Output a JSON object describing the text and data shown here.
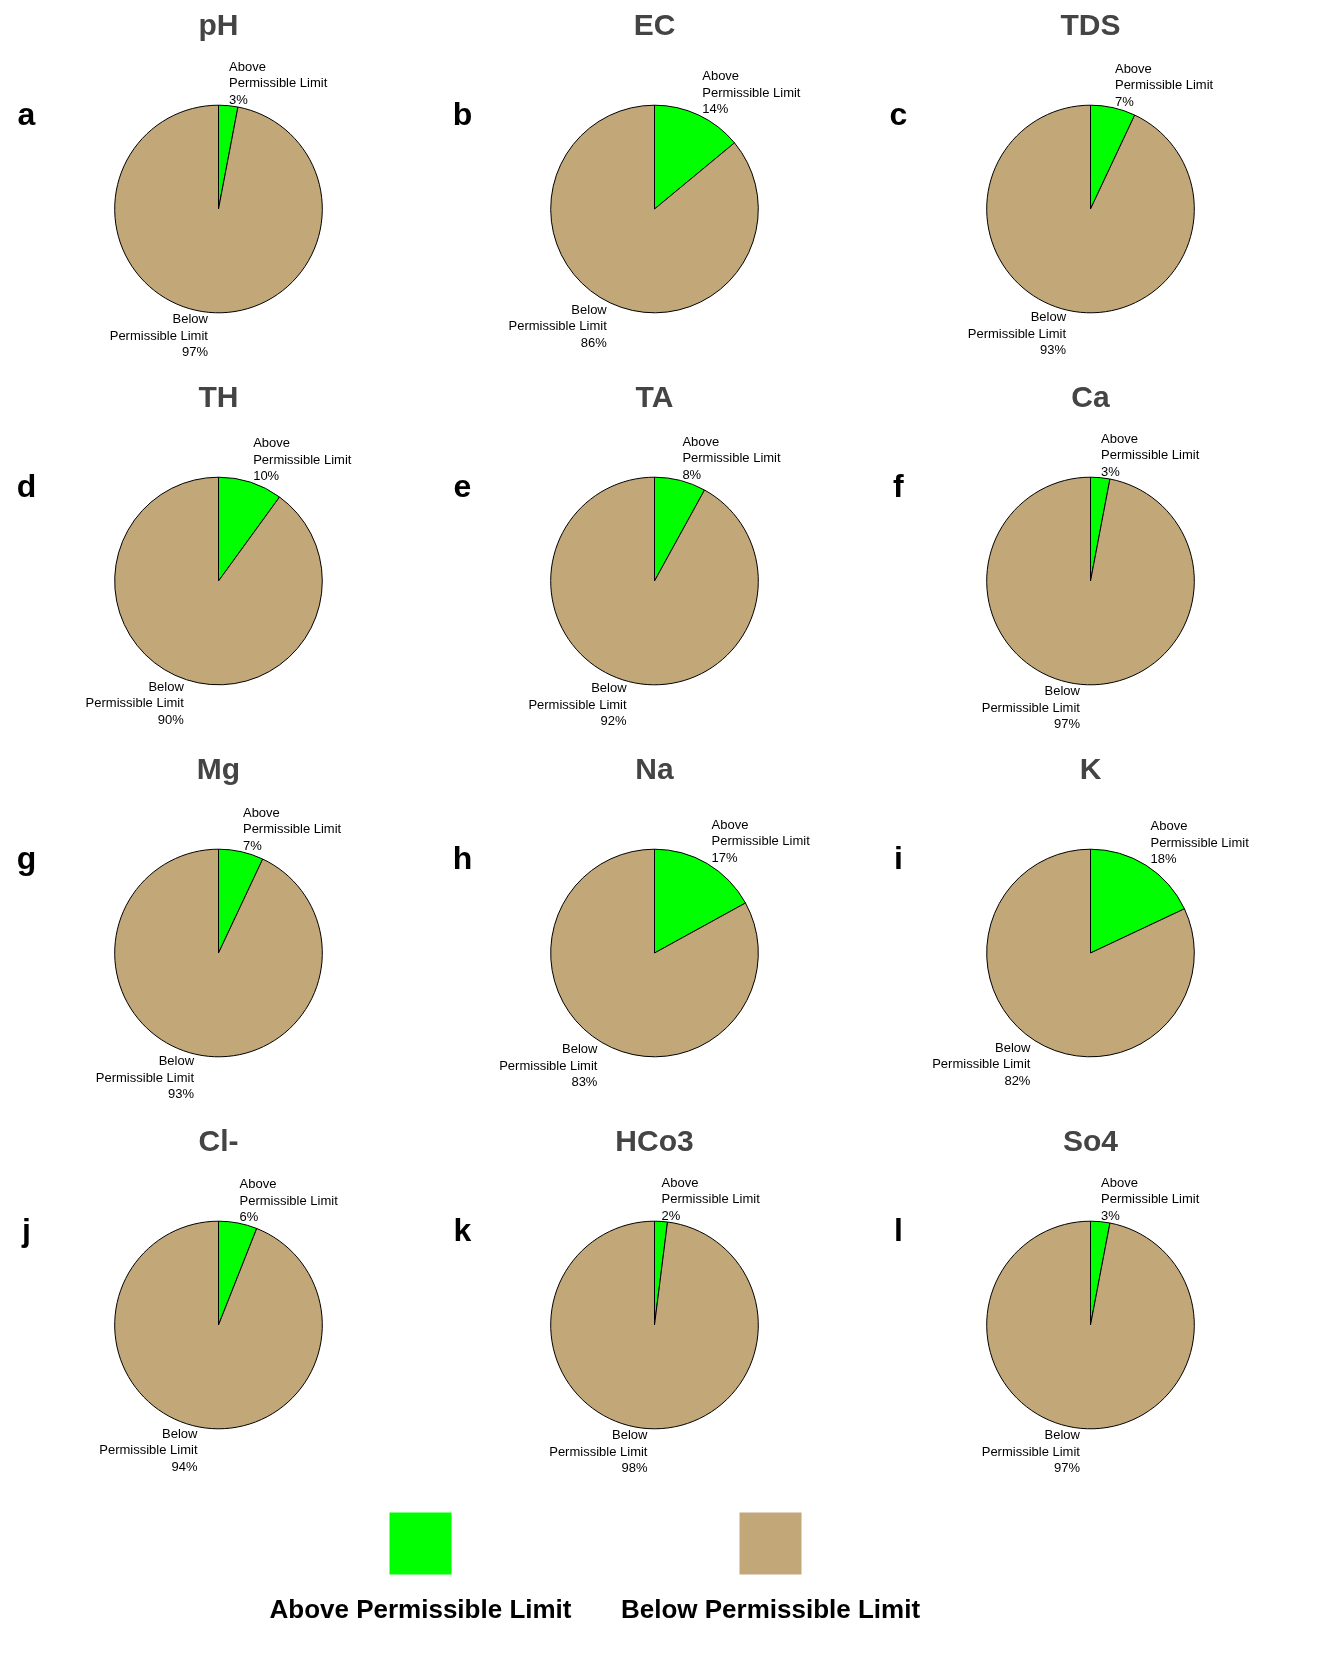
{
  "chart_data": [
    {
      "type": "pie",
      "title": "pH",
      "annotations": [
        "a"
      ],
      "categories": [
        "Above Permissible Limit",
        "Below Permissible Limit"
      ],
      "values": [
        3,
        97
      ],
      "value_labels": [
        "3%",
        "97%"
      ],
      "colors": [
        "#00ff00",
        "#c2a878"
      ]
    },
    {
      "type": "pie",
      "title": "EC",
      "annotations": [
        "b"
      ],
      "categories": [
        "Above Permissible Limit",
        "Below Permissible Limit"
      ],
      "values": [
        14,
        86
      ],
      "value_labels": [
        "14%",
        "86%"
      ],
      "colors": [
        "#00ff00",
        "#c2a878"
      ]
    },
    {
      "type": "pie",
      "title": "TDS",
      "annotations": [
        "c"
      ],
      "categories": [
        "Above Permissible Limit",
        "Below Permissible Limit"
      ],
      "values": [
        7,
        93
      ],
      "value_labels": [
        "7%",
        "93%"
      ],
      "colors": [
        "#00ff00",
        "#c2a878"
      ]
    },
    {
      "type": "pie",
      "title": "TH",
      "annotations": [
        "d"
      ],
      "categories": [
        "Above Permissible Limit",
        "Below Permissible Limit"
      ],
      "values": [
        10,
        90
      ],
      "value_labels": [
        "10%",
        "90%"
      ],
      "colors": [
        "#00ff00",
        "#c2a878"
      ]
    },
    {
      "type": "pie",
      "title": "TA",
      "annotations": [
        "e"
      ],
      "categories": [
        "Above Permissible Limit",
        "Below Permissible Limit"
      ],
      "values": [
        8,
        92
      ],
      "value_labels": [
        "8%",
        "92%"
      ],
      "colors": [
        "#00ff00",
        "#c2a878"
      ]
    },
    {
      "type": "pie",
      "title": "Ca",
      "annotations": [
        "f"
      ],
      "categories": [
        "Above Permissible Limit",
        "Below Permissible Limit"
      ],
      "values": [
        3,
        97
      ],
      "value_labels": [
        "3%",
        "97%"
      ],
      "colors": [
        "#00ff00",
        "#c2a878"
      ]
    },
    {
      "type": "pie",
      "title": "Mg",
      "annotations": [
        "g"
      ],
      "categories": [
        "Above Permissible Limit",
        "Below Permissible Limit"
      ],
      "values": [
        7,
        93
      ],
      "value_labels": [
        "7%",
        "93%"
      ],
      "colors": [
        "#00ff00",
        "#c2a878"
      ]
    },
    {
      "type": "pie",
      "title": "Na",
      "annotations": [
        "h"
      ],
      "categories": [
        "Above Permissible Limit",
        "Below Permissible Limit"
      ],
      "values": [
        17,
        83
      ],
      "value_labels": [
        "17%",
        "83%"
      ],
      "colors": [
        "#00ff00",
        "#c2a878"
      ]
    },
    {
      "type": "pie",
      "title": "K",
      "annotations": [
        "i"
      ],
      "categories": [
        "Above Permissible Limit",
        "Below Permissible Limit"
      ],
      "values": [
        18,
        82
      ],
      "value_labels": [
        "18%",
        "82%"
      ],
      "colors": [
        "#00ff00",
        "#c2a878"
      ]
    },
    {
      "type": "pie",
      "title": "Cl-",
      "annotations": [
        "j"
      ],
      "categories": [
        "Above Permissible Limit",
        "Below Permissible Limit"
      ],
      "values": [
        6,
        94
      ],
      "value_labels": [
        "6%",
        "94%"
      ],
      "colors": [
        "#00ff00",
        "#c2a878"
      ]
    },
    {
      "type": "pie",
      "title": "HCo3",
      "annotations": [
        "k"
      ],
      "categories": [
        "Above Permissible Limit",
        "Below Permissible Limit"
      ],
      "values": [
        2,
        98
      ],
      "value_labels": [
        "2%",
        "98%"
      ],
      "colors": [
        "#00ff00",
        "#c2a878"
      ]
    },
    {
      "type": "pie",
      "title": "So4",
      "annotations": [
        "l"
      ],
      "categories": [
        "Above Permissible Limit",
        "Below Permissible Limit"
      ],
      "values": [
        3,
        97
      ],
      "value_labels": [
        "3%",
        "97%"
      ],
      "colors": [
        "#00ff00",
        "#c2a878"
      ],
      "legend": "bottom"
    }
  ]
}
